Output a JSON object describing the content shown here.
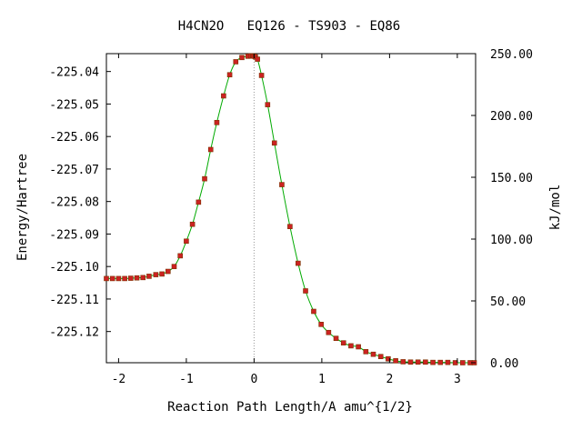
{
  "chart_data": {
    "type": "line",
    "title": "H4CN2O   EQ126 - TS903 - EQ86",
    "xlabel": "Reaction Path Length/A amu^{1/2}",
    "ylabel": "Energy/Hartree",
    "ylabel_right": "kJ/mol",
    "xlim": [
      -2.18,
      3.27
    ],
    "ylim": [
      -225.1296,
      -225.0345
    ],
    "ylim_right": [
      0.0,
      250.0
    ],
    "x_ticks": [
      -2,
      -1,
      0,
      1,
      2,
      3
    ],
    "x_tick_labels": [
      "-2",
      "-1",
      "0",
      "1",
      "2",
      "3"
    ],
    "y_ticks": [
      -225.04,
      -225.05,
      -225.06,
      -225.07,
      -225.08,
      -225.09,
      -225.1,
      -225.11,
      -225.12
    ],
    "y_tick_labels": [
      "-225.04",
      "-225.05",
      "-225.06",
      "-225.07",
      "-225.08",
      "-225.09",
      "-225.10",
      "-225.11",
      "-225.12"
    ],
    "y2_ticks": [
      250,
      200,
      150,
      100,
      50,
      0
    ],
    "y2_tick_labels": [
      "250.00",
      "200.00",
      "150.00",
      "100.00",
      "50.00",
      "0.00"
    ],
    "ts_marker_x": 0.0,
    "grid": false,
    "colors": {
      "line": "#00aa00",
      "marker": "#cc2222",
      "ts_line": "#999999"
    },
    "series": [
      {
        "x": [
          -2.18,
          -2.09,
          -2.0,
          -1.91,
          -1.82,
          -1.73,
          -1.64,
          -1.55,
          -1.45,
          -1.36,
          -1.27,
          -1.18,
          -1.09,
          -1.0,
          -0.91,
          -0.82,
          -0.73,
          -0.64,
          -0.55,
          -0.45,
          -0.36,
          -0.27,
          -0.18,
          -0.09,
          -0.05,
          -0.02,
          0.0,
          0.02,
          0.05,
          0.11,
          0.2,
          0.3,
          0.41,
          0.53,
          0.65,
          0.76,
          0.88,
          0.99,
          1.1,
          1.21,
          1.32,
          1.43,
          1.54,
          1.65,
          1.76,
          1.87,
          1.98,
          2.09,
          2.2,
          2.31,
          2.42,
          2.53,
          2.64,
          2.75,
          2.86,
          2.97,
          3.08,
          3.19,
          3.25
        ],
        "y": [
          -225.1037,
          -225.1037,
          -225.1037,
          -225.1037,
          -225.1036,
          -225.1035,
          -225.1034,
          -225.103,
          -225.1025,
          -225.1023,
          -225.1015,
          -225.1,
          -225.0967,
          -225.0922,
          -225.087,
          -225.0802,
          -225.073,
          -225.064,
          -225.0557,
          -225.0475,
          -225.041,
          -225.037,
          -225.0357,
          -225.0353,
          -225.0352,
          -225.0352,
          -225.0353,
          -225.0355,
          -225.0362,
          -225.0412,
          -225.0502,
          -225.062,
          -225.0748,
          -225.0877,
          -225.099,
          -225.1075,
          -225.1138,
          -225.1178,
          -225.1203,
          -225.1221,
          -225.1235,
          -225.1244,
          -225.1247,
          -225.1262,
          -225.127,
          -225.1277,
          -225.1284,
          -225.129,
          -225.1293,
          -225.1294,
          -225.1294,
          -225.1294,
          -225.1295,
          -225.1295,
          -225.1295,
          -225.1296,
          -225.1296,
          -225.1296,
          -225.1296
        ]
      }
    ]
  }
}
